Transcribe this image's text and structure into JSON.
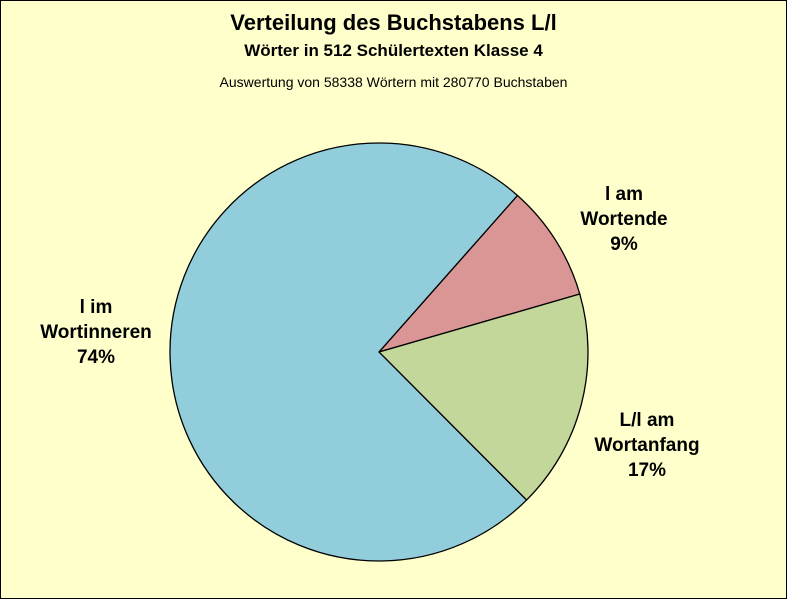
{
  "chart_data": {
    "type": "pie",
    "title": "Verteilung des Buchstabens L/l",
    "subtitle": "Wörter in 512 Schülertexten Klasse 4",
    "caption": "Auswertung von 58338 Wörtern mit 280770 Buchstaben",
    "slices": [
      {
        "label_lines": [
          "l am",
          "Wortende"
        ],
        "value": 9,
        "value_label": "9%",
        "color": "#d99694"
      },
      {
        "label_lines": [
          "L/l am",
          "Wortanfang"
        ],
        "value": 17,
        "value_label": "17%",
        "color": "#c4d79b"
      },
      {
        "label_lines": [
          "l im",
          "Wortinneren"
        ],
        "value": 74,
        "value_label": "74%",
        "color": "#92cddc"
      }
    ],
    "background": "#ffffcc",
    "legend": "none"
  }
}
